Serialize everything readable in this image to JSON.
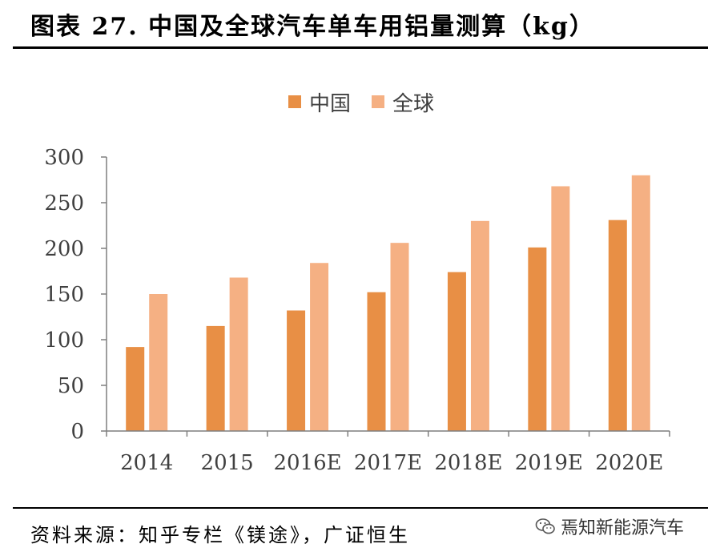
{
  "title": "图表 27. 中国及全球汽车单车用铝量测算（kg）",
  "source": "资料来源：知乎专栏《镁途》，广证恒生",
  "watermark": "焉知新能源汽车",
  "chart_data": {
    "type": "bar",
    "title": "",
    "xlabel": "",
    "ylabel": "",
    "categories": [
      "2014",
      "2015",
      "2016E",
      "2017E",
      "2018E",
      "2019E",
      "2020E"
    ],
    "series": [
      {
        "name": "中国",
        "color": "#E88F45",
        "values": [
          92,
          115,
          132,
          152,
          174,
          201,
          231
        ]
      },
      {
        "name": "全球",
        "color": "#F5B083",
        "values": [
          150,
          168,
          184,
          206,
          230,
          268,
          280
        ]
      }
    ],
    "ylim": [
      0,
      300
    ],
    "yticks": [
      0,
      50,
      100,
      150,
      200,
      250,
      300
    ],
    "grid": false,
    "legend": "top-center"
  }
}
